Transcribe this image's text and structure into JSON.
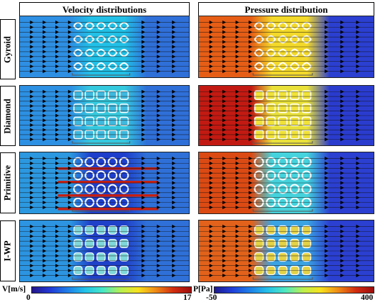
{
  "headers": {
    "velocity": "Velocity distributions",
    "pressure": "Pressure distribution"
  },
  "rows": [
    {
      "label": "Gyroid",
      "structure": "gyroid"
    },
    {
      "label": "Diamond",
      "structure": "diamond"
    },
    {
      "label": "Primitive",
      "structure": "primitive"
    },
    {
      "label": "I-WP",
      "structure": "iwp"
    }
  ],
  "velocity_colorbar": {
    "label": "V[m/s]",
    "min": "0",
    "max": "17",
    "stops": [
      "#24168a",
      "#2138d4",
      "#1f7de8",
      "#23c2e8",
      "#47e7c6",
      "#b6ef52",
      "#f8e21d",
      "#f08a17",
      "#d22d10",
      "#9c0d0d"
    ]
  },
  "pressure_colorbar": {
    "label": "P[Pa]",
    "min": "-50",
    "max": "400",
    "stops": [
      "#1e1a8e",
      "#1f3fd9",
      "#1e7fe7",
      "#25c1e8",
      "#4fe8c0",
      "#bcef4e",
      "#f8e21d",
      "#f08a17",
      "#d22d10",
      "#9c0d0d"
    ]
  },
  "panel_colors": {
    "gyroid": {
      "vel_in": "#2e8fe3",
      "vel_out": "#2f6fd8",
      "vel_mid": "#22c0e6",
      "pr_in": "#e65e16",
      "pr_mid": "#f3d92a",
      "pr_out": "#2b3fd0"
    },
    "diamond": {
      "vel_in": "#2d90e2",
      "vel_out": "#2f6fd8",
      "vel_mid": "#35c9de",
      "pr_in": "#c21a12",
      "pr_mid": "#e9e13a",
      "pr_out": "#2a3cce"
    },
    "primitive": {
      "vel_in": "#2c98e0",
      "vel_out": "#2f70d8",
      "vel_mid": "#1d3fcb",
      "pr_in": "#dc4a13",
      "pr_mid": "#45d3dd",
      "pr_out": "#2b3fd0"
    },
    "iwp": {
      "vel_in": "#2c94e1",
      "vel_out": "#2f70d8",
      "vel_mid": "#1f40c8",
      "pr_in": "#e2621b",
      "pr_mid": "#3aa3e3",
      "pr_out": "#2b3fd0"
    }
  }
}
